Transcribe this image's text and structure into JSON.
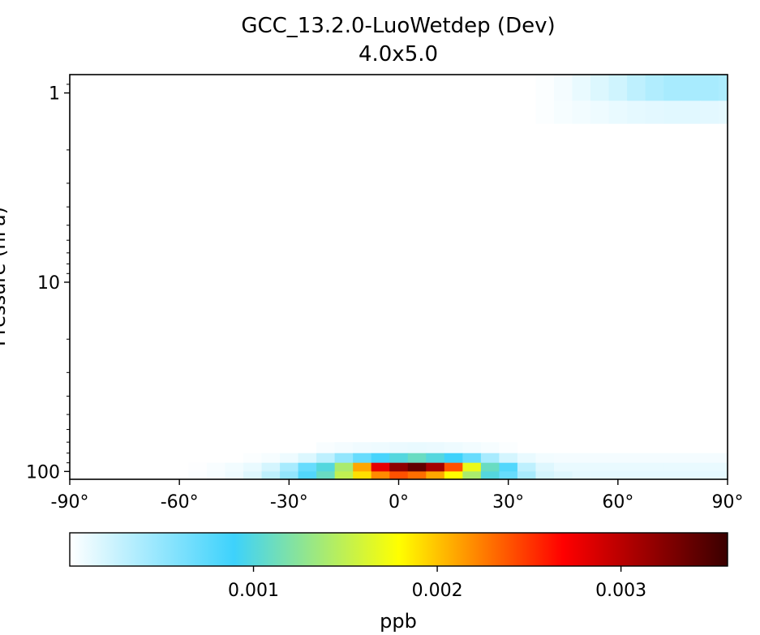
{
  "chart_data": {
    "type": "heatmap",
    "title": "GCC_13.2.0-LuoWetdep (Dev)",
    "subtitle": "4.0x5.0",
    "ylabel": "Pressure (hPa)",
    "xlabel": "",
    "x_ticks": [
      "-90°",
      "-60°",
      "-30°",
      "0°",
      "30°",
      "60°",
      "90°"
    ],
    "y_ticks": [
      "1",
      "10",
      "100"
    ],
    "y_scale": "log",
    "y_inverted": true,
    "xlim": [
      -90,
      90
    ],
    "ylim": [
      110,
      0.8
    ],
    "grid": false,
    "colorbar": {
      "label": "ppb",
      "ticks": [
        "0.001",
        "0.002",
        "0.003"
      ],
      "tick_values": [
        0.001,
        0.002,
        0.003
      ],
      "range": [
        0,
        0.00358
      ],
      "colormap_stops": [
        "#ffffff",
        "#3dd2fc",
        "#ffff00",
        "#ff0000",
        "#3a0000"
      ]
    },
    "values_unit": "ppb",
    "rows": [
      {
        "p_top": 0.8,
        "p_bot": 1.1,
        "lat": [
          40,
          45,
          50,
          55,
          60,
          65,
          70,
          75,
          80,
          85,
          90
        ],
        "values": [
          2e-05,
          5e-05,
          0.0001,
          0.00016,
          0.00022,
          0.0003,
          0.00036,
          0.0004,
          0.0004,
          0.0004,
          0.00038
        ]
      },
      {
        "p_top": 1.1,
        "p_bot": 1.45,
        "lat": [
          40,
          45,
          50,
          55,
          60,
          65,
          70,
          75,
          80,
          85,
          90
        ],
        "values": [
          2e-05,
          4e-05,
          6e-05,
          8e-05,
          0.0001,
          0.00012,
          0.00013,
          0.00014,
          0.00014,
          0.00013,
          0.00012
        ]
      },
      {
        "p_top": 70,
        "p_bot": 80,
        "lat": [
          -20,
          -15,
          -10,
          -5,
          0,
          5,
          10,
          15,
          20,
          25,
          30
        ],
        "values": [
          3e-05,
          5e-05,
          7e-05,
          8e-05,
          9e-05,
          0.0001,
          9e-05,
          8e-05,
          6e-05,
          4e-05,
          2e-05
        ]
      },
      {
        "p_top": 80,
        "p_bot": 90,
        "lat": [
          -40,
          -35,
          -30,
          -25,
          -20,
          -15,
          -10,
          -5,
          0,
          5,
          10,
          15,
          20,
          25,
          30,
          35,
          40,
          45,
          50,
          55,
          60,
          65,
          70,
          75,
          80,
          85,
          90
        ],
        "values": [
          2e-05,
          4e-05,
          8e-05,
          0.00016,
          0.0003,
          0.0005,
          0.0007,
          0.00085,
          0.001,
          0.0011,
          0.001,
          0.0009,
          0.0007,
          0.0004,
          0.0002,
          0.0001,
          6e-05,
          5e-05,
          5e-05,
          5e-05,
          5e-05,
          5e-05,
          5e-05,
          5e-05,
          5e-05,
          5e-05,
          5e-05
        ]
      },
      {
        "p_top": 90,
        "p_bot": 100,
        "lat": [
          -55,
          -50,
          -45,
          -40,
          -35,
          -30,
          -25,
          -20,
          -15,
          -10,
          -5,
          0,
          5,
          10,
          15,
          20,
          25,
          30,
          35,
          40,
          45,
          50,
          55,
          60,
          65,
          70,
          75,
          80,
          85,
          90
        ],
        "values": [
          1e-05,
          3e-05,
          6e-05,
          0.0001,
          0.0002,
          0.0004,
          0.0007,
          0.001,
          0.0014,
          0.0021,
          0.0028,
          0.0032,
          0.0034,
          0.0031,
          0.0024,
          0.0017,
          0.0011,
          0.0008,
          0.0003,
          0.00015,
          0.0001,
          0.0001,
          0.0001,
          0.0001,
          0.0001,
          0.0001,
          0.0001,
          0.0001,
          0.0001,
          0.0001
        ]
      },
      {
        "p_top": 100,
        "p_bot": 110,
        "lat": [
          -55,
          -50,
          -45,
          -40,
          -35,
          -30,
          -25,
          -20,
          -15,
          -10,
          -5,
          0,
          5,
          10,
          15,
          20,
          25,
          30,
          35,
          40,
          45,
          50,
          55,
          60,
          65,
          70,
          75,
          80,
          85,
          90
        ],
        "values": [
          2e-05,
          4e-05,
          8e-05,
          0.00015,
          0.0003,
          0.0005,
          0.0008,
          0.0011,
          0.0015,
          0.0019,
          0.0022,
          0.0024,
          0.0023,
          0.0021,
          0.0018,
          0.0014,
          0.001,
          0.0007,
          0.0004,
          0.0002,
          0.00015,
          0.00012,
          0.00012,
          0.00012,
          0.00012,
          0.00012,
          0.00012,
          0.00012,
          0.00012,
          0.00012
        ]
      }
    ]
  }
}
